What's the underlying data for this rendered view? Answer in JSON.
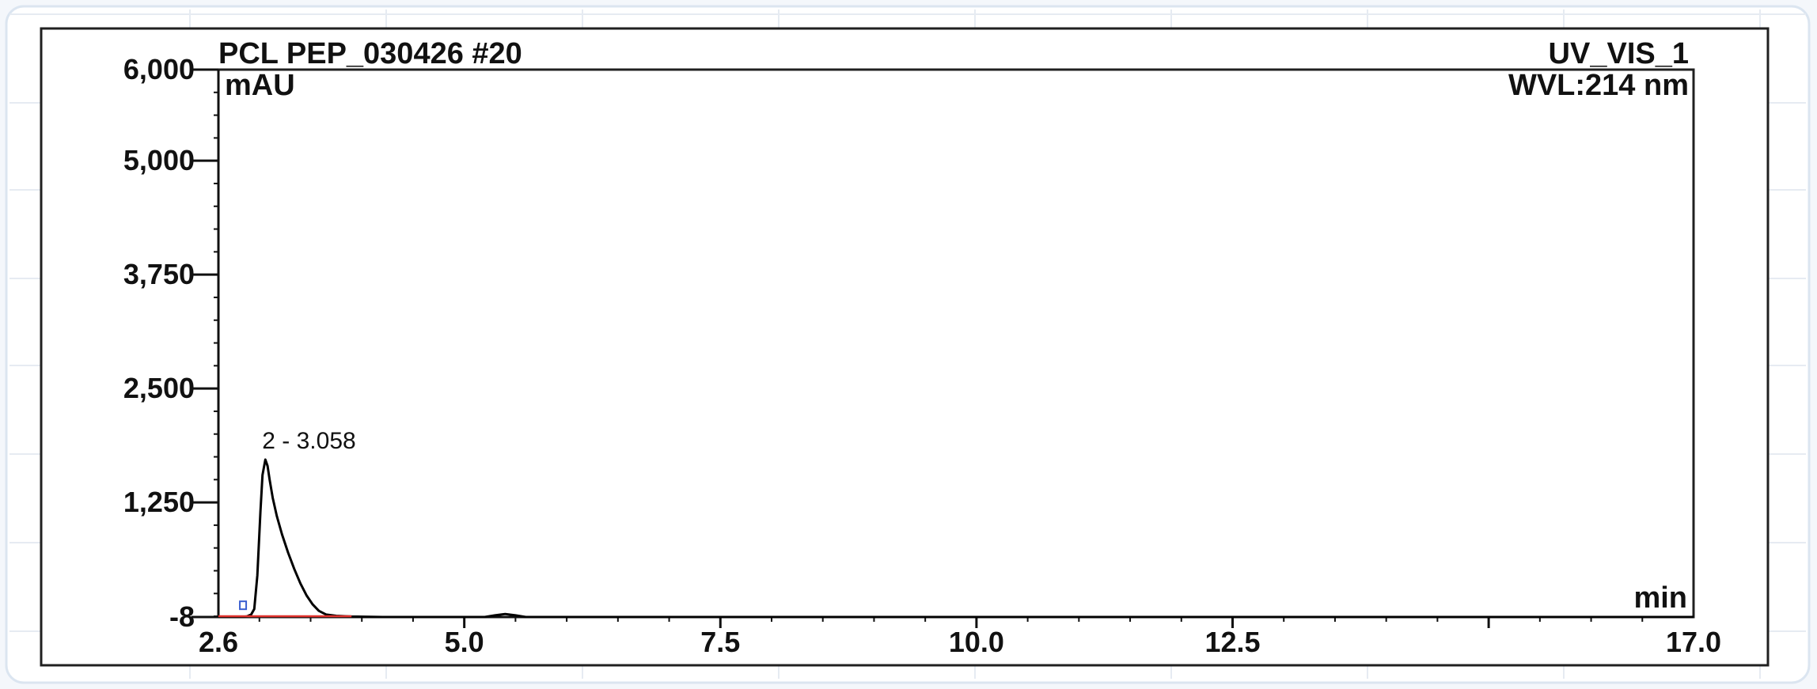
{
  "chart_data": {
    "type": "line",
    "title": "PCL PEP_030426 #20",
    "channel": "UV_VIS_1",
    "wavelength_label": "WVL:214 nm",
    "ylabel": "mAU",
    "xlabel": "min",
    "xlim": [
      2.6,
      17.0
    ],
    "ylim": [
      -8,
      6000
    ],
    "y_ticks": [
      {
        "value": -8,
        "label": "-8"
      },
      {
        "value": 1250,
        "label": "1,250"
      },
      {
        "value": 2500,
        "label": "2,500"
      },
      {
        "value": 3750,
        "label": "3,750"
      },
      {
        "value": 5000,
        "label": "5,000"
      },
      {
        "value": 6000,
        "label": "6,000"
      }
    ],
    "x_ticks": [
      {
        "value": 2.6,
        "label": "2.6"
      },
      {
        "value": 5.0,
        "label": "5.0"
      },
      {
        "value": 7.5,
        "label": "7.5"
      },
      {
        "value": 10.0,
        "label": "10.0"
      },
      {
        "value": 12.5,
        "label": "12.5"
      },
      {
        "value": 17.0,
        "label": "17.0"
      }
    ],
    "x_minor_step": 0.5,
    "y_minor_step": 250,
    "grid": false,
    "series": [
      {
        "x": [
          2.6,
          2.75,
          2.85,
          2.88,
          2.92,
          2.95,
          2.98,
          3.01,
          3.03,
          3.058,
          3.08,
          3.1,
          3.13,
          3.17,
          3.22,
          3.28,
          3.34,
          3.4,
          3.46,
          3.52,
          3.58,
          3.65,
          3.75,
          3.9,
          4.2,
          5.2,
          5.3,
          5.4,
          5.5,
          5.6,
          6.0,
          17.0
        ],
        "y": [
          -8,
          -8,
          -5,
          0,
          20,
          80,
          450,
          1150,
          1550,
          1720,
          1650,
          1500,
          1300,
          1100,
          900,
          700,
          520,
          360,
          230,
          130,
          60,
          20,
          5,
          -3,
          -8,
          -8,
          10,
          25,
          10,
          -8,
          -8,
          -8
        ]
      }
    ],
    "baseline": {
      "x_start": 2.6,
      "x_end": 3.9,
      "y": -8,
      "color": "#e0332e"
    },
    "peak_markers": [
      {
        "x": 2.84,
        "y": 60,
        "color": "#3a5fd0"
      }
    ],
    "annotations": [
      {
        "label": "2 - 3.058",
        "x": 3.058,
        "y": 1720
      }
    ]
  }
}
